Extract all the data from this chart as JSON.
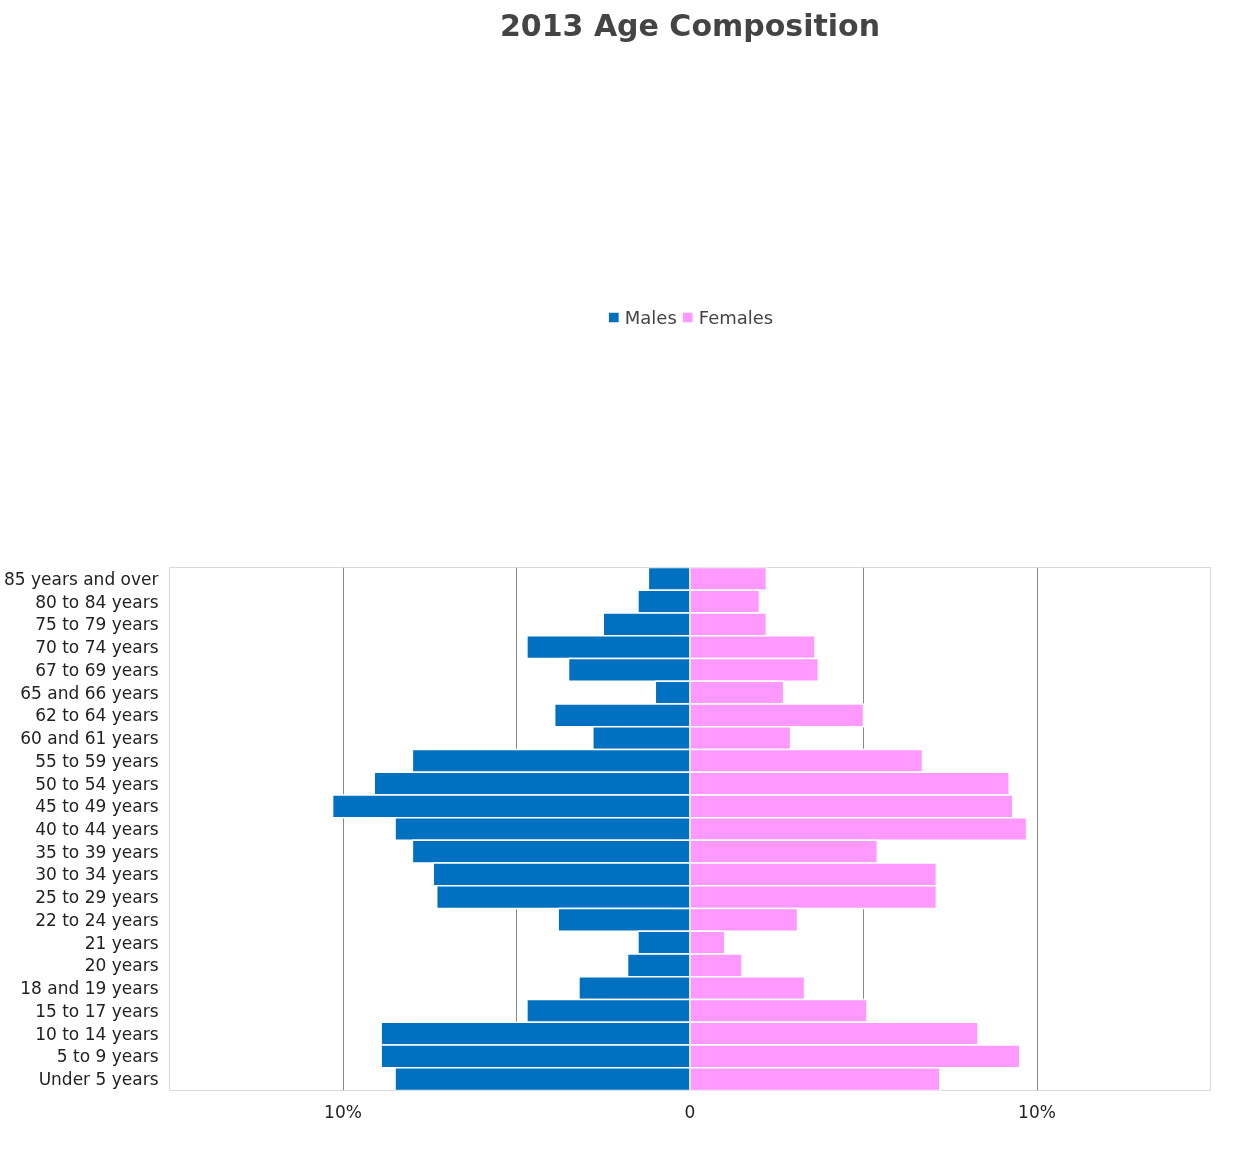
{
  "chart_data": {
    "type": "bar",
    "orientation": "horizontal",
    "stacked": true,
    "title": "2013 Age Composition",
    "categories": [
      "85 years and over",
      "80 to 84 years",
      "75 to 79 years",
      "70 to 74 years",
      "67 to 69 years",
      "65 and 66 years",
      "62 to 64 years",
      "60 and 61 years",
      "55 to 59 years",
      "50 to 54 years",
      "45 to 49 years",
      "40 to 44 years",
      "35 to 39 years",
      "30 to 34 years",
      "25 to 29 years",
      "22 to 24 years",
      "21 years",
      "20 years",
      "18 and 19 years",
      "15 to 17 years",
      "10 to 14 years",
      "5 to 9 years",
      "Under 5 years"
    ],
    "series": [
      {
        "name": "Males",
        "color": "#0070c0",
        "values": [
          -1.2,
          -1.5,
          -2.5,
          -4.7,
          -3.5,
          -1.0,
          -3.9,
          -2.8,
          -8.0,
          -9.1,
          -10.3,
          -8.5,
          -8.0,
          -7.4,
          -7.3,
          -3.8,
          -1.5,
          -1.8,
          -3.2,
          -4.7,
          -8.9,
          -8.9,
          -8.5
        ]
      },
      {
        "name": "Females",
        "color": "#ff99ff",
        "values": [
          2.2,
          2.0,
          2.2,
          3.6,
          3.7,
          2.7,
          5.0,
          2.9,
          6.7,
          9.2,
          9.3,
          9.7,
          5.4,
          7.1,
          7.1,
          3.1,
          1.0,
          1.5,
          3.3,
          5.1,
          8.3,
          9.5,
          7.2
        ]
      }
    ],
    "xlim": [
      -15,
      15
    ],
    "xticks": [
      {
        "value": -10,
        "label": "10%"
      },
      {
        "value": -5,
        "label": null
      },
      0,
      {
        "value": 5,
        "label": null
      },
      {
        "value": 10,
        "label": "10%"
      }
    ],
    "grid": "x",
    "legend": "top"
  }
}
